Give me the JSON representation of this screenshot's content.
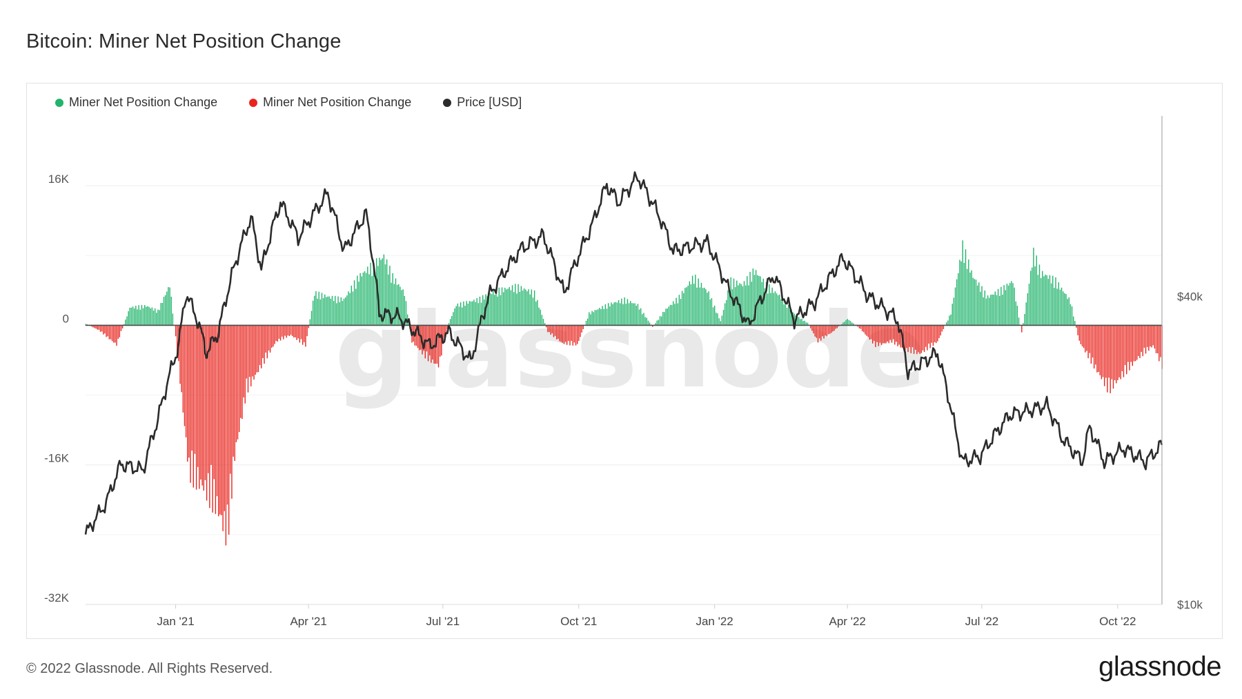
{
  "title": "Bitcoin: Miner Net Position Change",
  "legend": [
    {
      "label": "Miner Net Position Change",
      "color": "#21b46b",
      "icon": "dot"
    },
    {
      "label": "Miner Net Position Change",
      "color": "#e8241d",
      "icon": "dot"
    },
    {
      "label": "Price [USD]",
      "color": "#2b2b2b",
      "icon": "dot"
    }
  ],
  "footer": "© 2022 Glassnode. All Rights Reserved.",
  "brand": "glassnode",
  "watermark": "glassnode",
  "chart_data": {
    "type": "bar",
    "x_range": [
      "2020-11-01",
      "2022-10-31"
    ],
    "x_ticks": [
      "Jan '21",
      "Apr '21",
      "Jul '21",
      "Oct '21",
      "Jan '22",
      "Apr '22",
      "Jul '22",
      "Oct '22"
    ],
    "x_tick_dates": [
      "2021-01-01",
      "2021-04-01",
      "2021-07-01",
      "2021-10-01",
      "2022-01-01",
      "2022-04-01",
      "2022-07-01",
      "2022-10-01"
    ],
    "y_left": {
      "ticks": [
        "16K",
        "0",
        "-16K",
        "-32K"
      ],
      "tick_values": [
        16000,
        0,
        -16000,
        -32000
      ],
      "range": [
        -32000,
        24000
      ]
    },
    "y_right": {
      "ticks": [
        "$40k",
        "$10k"
      ],
      "tick_values": [
        40000,
        10000
      ],
      "scale": "log",
      "range": [
        10000,
        90000
      ]
    },
    "positive_color": "#21b46b",
    "negative_color": "#e8241d",
    "price_color": "#2b2b2b",
    "net_position_keypoints": [
      [
        "2020-11-01",
        200
      ],
      [
        "2020-11-10",
        -600
      ],
      [
        "2020-11-22",
        -2400
      ],
      [
        "2020-12-01",
        2200
      ],
      [
        "2020-12-12",
        2400
      ],
      [
        "2020-12-20",
        1800
      ],
      [
        "2020-12-28",
        5000
      ],
      [
        "2021-01-03",
        -5000
      ],
      [
        "2021-01-10",
        -18000
      ],
      [
        "2021-01-20",
        -20000
      ],
      [
        "2021-01-28",
        -22000
      ],
      [
        "2021-02-05",
        -26000
      ],
      [
        "2021-02-10",
        -16000
      ],
      [
        "2021-02-18",
        -8000
      ],
      [
        "2021-02-28",
        -5000
      ],
      [
        "2021-03-10",
        -2000
      ],
      [
        "2021-03-20",
        -1200
      ],
      [
        "2021-03-30",
        -2500
      ],
      [
        "2021-04-05",
        4000
      ],
      [
        "2021-04-15",
        3500
      ],
      [
        "2021-04-25",
        3200
      ],
      [
        "2021-05-05",
        6000
      ],
      [
        "2021-05-15",
        7500
      ],
      [
        "2021-05-22",
        8500
      ],
      [
        "2021-05-28",
        6000
      ],
      [
        "2021-06-05",
        4000
      ],
      [
        "2021-06-10",
        -2000
      ],
      [
        "2021-06-20",
        -4000
      ],
      [
        "2021-06-28",
        -5000
      ],
      [
        "2021-07-05",
        300
      ],
      [
        "2021-07-10",
        2500
      ],
      [
        "2021-07-25",
        3200
      ],
      [
        "2021-08-05",
        4200
      ],
      [
        "2021-08-20",
        4800
      ],
      [
        "2021-09-01",
        4000
      ],
      [
        "2021-09-10",
        -800
      ],
      [
        "2021-09-20",
        -2200
      ],
      [
        "2021-09-30",
        -2400
      ],
      [
        "2021-10-08",
        1500
      ],
      [
        "2021-10-20",
        2500
      ],
      [
        "2021-11-01",
        3200
      ],
      [
        "2021-11-10",
        2500
      ],
      [
        "2021-11-20",
        -200
      ],
      [
        "2021-11-28",
        1800
      ],
      [
        "2021-12-08",
        3500
      ],
      [
        "2021-12-18",
        6000
      ],
      [
        "2021-12-28",
        4000
      ],
      [
        "2022-01-05",
        500
      ],
      [
        "2022-01-12",
        5500
      ],
      [
        "2022-01-20",
        5000
      ],
      [
        "2022-01-28",
        6800
      ],
      [
        "2022-02-05",
        5000
      ],
      [
        "2022-02-15",
        3500
      ],
      [
        "2022-02-25",
        1200
      ],
      [
        "2022-03-05",
        300
      ],
      [
        "2022-03-12",
        -2000
      ],
      [
        "2022-03-22",
        -800
      ],
      [
        "2022-04-01",
        800
      ],
      [
        "2022-04-10",
        -500
      ],
      [
        "2022-04-20",
        -2500
      ],
      [
        "2022-05-01",
        -2000
      ],
      [
        "2022-05-10",
        -3000
      ],
      [
        "2022-05-20",
        -3500
      ],
      [
        "2022-06-01",
        -2000
      ],
      [
        "2022-06-10",
        1500
      ],
      [
        "2022-06-18",
        9800
      ],
      [
        "2022-06-25",
        6000
      ],
      [
        "2022-07-05",
        3500
      ],
      [
        "2022-07-15",
        4500
      ],
      [
        "2022-07-22",
        5500
      ],
      [
        "2022-07-28",
        -1000
      ],
      [
        "2022-08-05",
        9000
      ],
      [
        "2022-08-10",
        6500
      ],
      [
        "2022-08-20",
        5500
      ],
      [
        "2022-08-30",
        3000
      ],
      [
        "2022-09-05",
        -2000
      ],
      [
        "2022-09-15",
        -5000
      ],
      [
        "2022-09-25",
        -8000
      ],
      [
        "2022-10-05",
        -6000
      ],
      [
        "2022-10-15",
        -4000
      ],
      [
        "2022-10-25",
        -2500
      ],
      [
        "2022-10-31",
        -5000
      ]
    ],
    "price_keypoints": [
      [
        "2020-11-01",
        13700
      ],
      [
        "2020-11-15",
        15800
      ],
      [
        "2020-11-25",
        18800
      ],
      [
        "2020-12-10",
        18300
      ],
      [
        "2020-12-20",
        23000
      ],
      [
        "2021-01-03",
        32000
      ],
      [
        "2021-01-08",
        40500
      ],
      [
        "2021-01-15",
        36500
      ],
      [
        "2021-01-22",
        31000
      ],
      [
        "2021-01-30",
        34000
      ],
      [
        "2021-02-10",
        46000
      ],
      [
        "2021-02-21",
        57000
      ],
      [
        "2021-02-28",
        45000
      ],
      [
        "2021-03-13",
        61000
      ],
      [
        "2021-03-25",
        52000
      ],
      [
        "2021-04-14",
        63500
      ],
      [
        "2021-04-25",
        49000
      ],
      [
        "2021-05-10",
        58000
      ],
      [
        "2021-05-19",
        37000
      ],
      [
        "2021-06-01",
        36500
      ],
      [
        "2021-06-22",
        32000
      ],
      [
        "2021-07-05",
        34000
      ],
      [
        "2021-07-20",
        29800
      ],
      [
        "2021-08-01",
        40000
      ],
      [
        "2021-08-23",
        49500
      ],
      [
        "2021-09-07",
        52500
      ],
      [
        "2021-09-21",
        40500
      ],
      [
        "2021-10-10",
        55000
      ],
      [
        "2021-10-20",
        66000
      ],
      [
        "2021-10-28",
        61000
      ],
      [
        "2021-11-10",
        68500
      ],
      [
        "2021-11-25",
        57000
      ],
      [
        "2021-12-04",
        49000
      ],
      [
        "2021-12-27",
        51000
      ],
      [
        "2022-01-10",
        41500
      ],
      [
        "2022-01-24",
        35000
      ],
      [
        "2022-02-10",
        44000
      ],
      [
        "2022-02-24",
        36000
      ],
      [
        "2022-03-10",
        39000
      ],
      [
        "2022-03-29",
        47500
      ],
      [
        "2022-04-15",
        40000
      ],
      [
        "2022-05-05",
        36000
      ],
      [
        "2022-05-12",
        28500
      ],
      [
        "2022-06-01",
        31000
      ],
      [
        "2022-06-13",
        22000
      ],
      [
        "2022-06-18",
        19000
      ],
      [
        "2022-06-30",
        19500
      ],
      [
        "2022-07-20",
        23500
      ],
      [
        "2022-07-30",
        23800
      ],
      [
        "2022-08-14",
        24500
      ],
      [
        "2022-08-25",
        21000
      ],
      [
        "2022-09-07",
        19000
      ],
      [
        "2022-09-12",
        22200
      ],
      [
        "2022-09-22",
        19000
      ],
      [
        "2022-10-05",
        20200
      ],
      [
        "2022-10-20",
        19000
      ],
      [
        "2022-10-31",
        20500
      ]
    ]
  }
}
